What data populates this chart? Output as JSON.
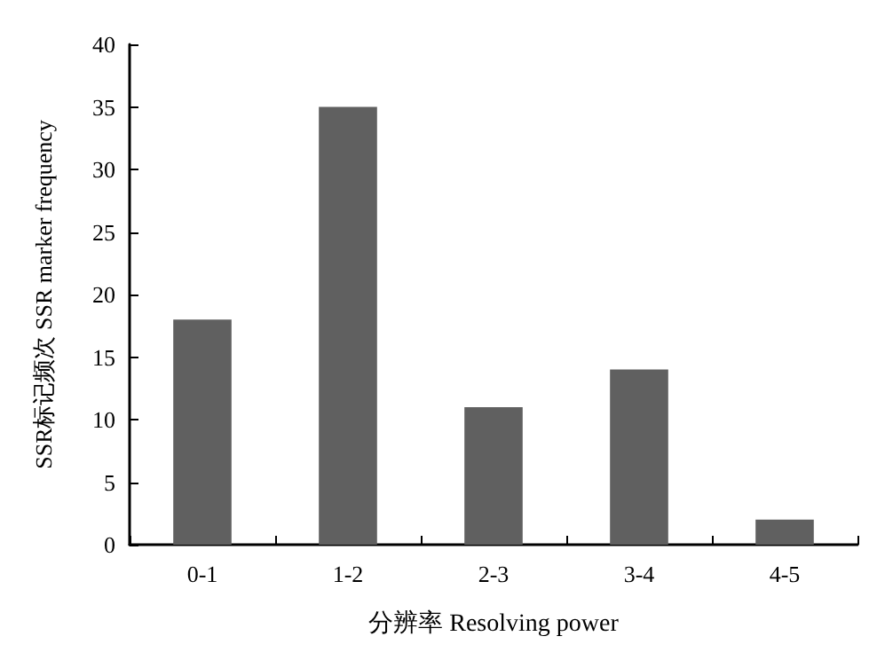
{
  "chart_data": {
    "type": "bar",
    "xlabel": "分辨率 Resolving power",
    "ylabel": "SSR标记频次 SSR marker frequency",
    "categories": [
      "0-1",
      "1-2",
      "2-3",
      "3-4",
      "4-5"
    ],
    "values": [
      18,
      35,
      11,
      14,
      2
    ],
    "color": "#606060",
    "ylim": [
      0,
      40
    ],
    "yticks": [
      0,
      5,
      10,
      15,
      20,
      25,
      30,
      35,
      40
    ],
    "grid": false
  }
}
